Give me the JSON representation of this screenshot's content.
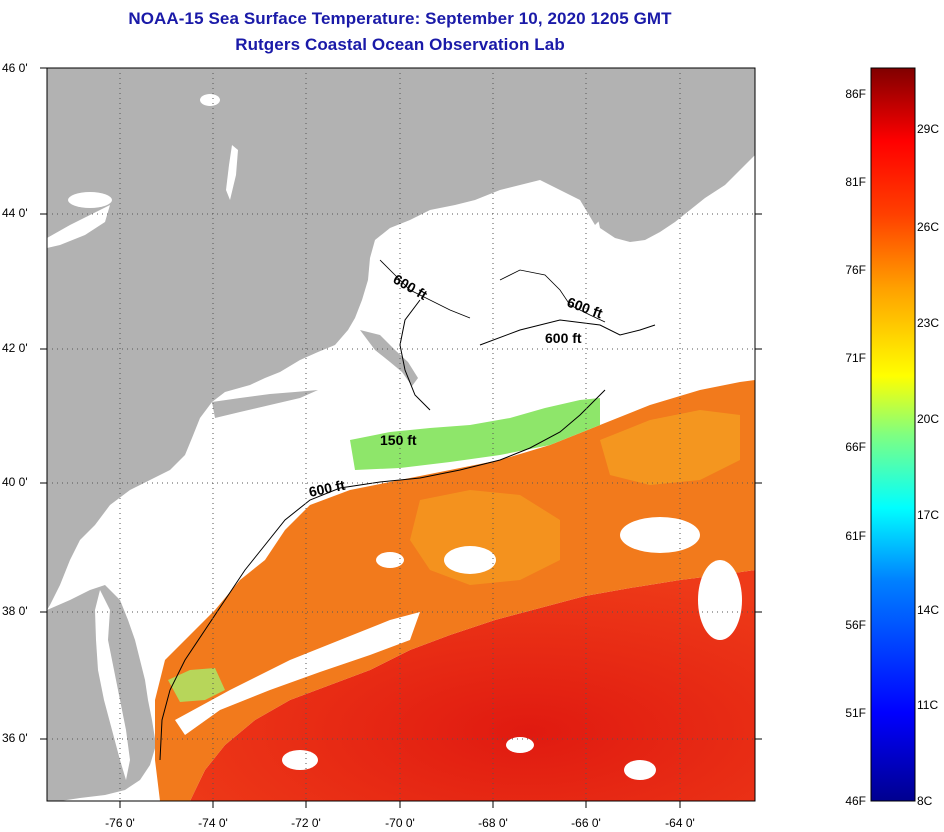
{
  "title_line1": "NOAA-15 Sea Surface Temperature:  September 10, 2020 1205 GMT",
  "title_line2": "Rutgers Coastal Ocean Observation Lab",
  "lat_labels": [
    "46 0'",
    "44 0'",
    "42 0'",
    "40 0'",
    "38 0'",
    "36 0'"
  ],
  "lon_labels": [
    "-76 0'",
    "-74 0'",
    "-72 0'",
    "-70 0'",
    "-68 0'",
    "-66 0'",
    "-64 0'"
  ],
  "contour_labels": {
    "c600a": "600 ft",
    "c600b": "600 ft",
    "c600c": "600 ft",
    "c150": "150 ft",
    "c600d": "600 ft"
  },
  "colorbar": {
    "fahrenheit": [
      "86F",
      "81F",
      "76F",
      "71F",
      "66F",
      "61F",
      "56F",
      "51F",
      "46F"
    ],
    "celsius": [
      "29C",
      "26C",
      "23C",
      "20C",
      "17C",
      "14C",
      "11C",
      "8C"
    ]
  },
  "colors": {
    "land": "#b2b2b2",
    "title": "#1a1aa8",
    "warm_sst": "#e81e12",
    "mid_sst": "#f27a1c",
    "cool_sst": "#8ee66a"
  }
}
